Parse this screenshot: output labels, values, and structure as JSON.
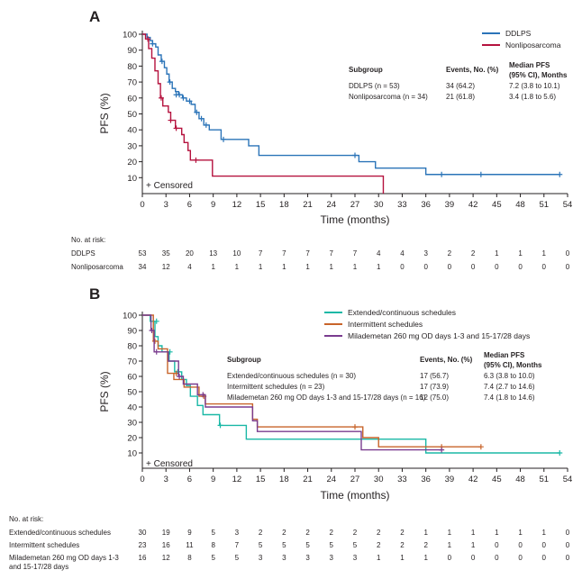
{
  "chart_data": [
    {
      "type": "line",
      "panel": "A",
      "xlabel": "Time (months)",
      "ylabel": "PFS (%)",
      "xlim": [
        0,
        54
      ],
      "ylim": [
        0,
        100
      ],
      "x_ticks": [
        0,
        3,
        6,
        9,
        12,
        15,
        18,
        21,
        24,
        27,
        30,
        33,
        36,
        39,
        42,
        45,
        48,
        51,
        54
      ],
      "y_ticks": [
        10,
        20,
        30,
        40,
        50,
        60,
        70,
        80,
        90,
        100
      ],
      "censor_note": "+ Censored",
      "legend": [
        {
          "label": "DDLPS",
          "color": "#2b74b8"
        },
        {
          "label": "Nonliposarcoma",
          "color": "#b5123e"
        }
      ],
      "series": [
        {
          "name": "DDLPS",
          "color": "#2b74b8",
          "steps": [
            [
              0,
              100
            ],
            [
              0.6,
              98
            ],
            [
              1,
              96
            ],
            [
              1.3,
              94
            ],
            [
              1.7,
              92
            ],
            [
              2,
              87
            ],
            [
              2.4,
              83
            ],
            [
              2.8,
              79
            ],
            [
              3.1,
              75
            ],
            [
              3.4,
              70
            ],
            [
              3.8,
              66
            ],
            [
              4.2,
              64
            ],
            [
              4.6,
              62
            ],
            [
              5.1,
              60
            ],
            [
              5.6,
              58
            ],
            [
              6.2,
              56
            ],
            [
              6.7,
              51
            ],
            [
              7.2,
              47
            ],
            [
              7.8,
              43
            ],
            [
              8.5,
              40
            ],
            [
              10,
              34
            ],
            [
              13.5,
              30
            ],
            [
              14.8,
              24
            ],
            [
              27.5,
              20
            ],
            [
              29.6,
              16
            ],
            [
              36,
              12
            ],
            [
              53,
              12
            ]
          ],
          "censors": [
            [
              1.3,
              94
            ],
            [
              2.5,
              83
            ],
            [
              3.5,
              70
            ],
            [
              4.3,
              62
            ],
            [
              4.7,
              62
            ],
            [
              5.2,
              60
            ],
            [
              6,
              58
            ],
            [
              6.9,
              51
            ],
            [
              7.5,
              47
            ],
            [
              8.1,
              43
            ],
            [
              10.3,
              34
            ],
            [
              27,
              24
            ],
            [
              38,
              12
            ],
            [
              43,
              12
            ],
            [
              53,
              12
            ]
          ]
        },
        {
          "name": "Nonliposarcoma",
          "color": "#b5123e",
          "steps": [
            [
              0,
              100
            ],
            [
              0.4,
              97
            ],
            [
              0.8,
              91
            ],
            [
              1.2,
              85
            ],
            [
              1.6,
              77
            ],
            [
              2,
              69
            ],
            [
              2.3,
              60
            ],
            [
              2.6,
              55
            ],
            [
              3.3,
              51
            ],
            [
              3.6,
              46
            ],
            [
              4.2,
              41
            ],
            [
              5,
              37
            ],
            [
              5.3,
              32
            ],
            [
              5.8,
              27
            ],
            [
              6.1,
              21
            ],
            [
              8.9,
              11
            ],
            [
              30.6,
              0
            ]
          ],
          "censors": [
            [
              0.7,
              97
            ],
            [
              2.4,
              60
            ],
            [
              3.6,
              46
            ],
            [
              4.3,
              41
            ],
            [
              6.8,
              21
            ]
          ]
        }
      ],
      "table": {
        "headers": {
          "subgroup": "Subgroup",
          "events": "Events, No. (%)",
          "median_l1": "Median PFS",
          "median_l2": "(95% CI), Months"
        },
        "rows": [
          {
            "subgroup": "DDLPS (n = 53)",
            "events": "34 (64.2)",
            "median": "7.2 (3.8 to 10.1)"
          },
          {
            "subgroup": "Nonliposarcoma (n = 34)",
            "events": "21 (61.8)",
            "median": "3.4 (1.8 to 5.6)"
          }
        ]
      },
      "at_risk": {
        "title": "No. at risk:",
        "rows": [
          {
            "label": "DDLPS",
            "values": [
              53,
              35,
              20,
              13,
              10,
              7,
              7,
              7,
              7,
              7,
              4,
              4,
              3,
              2,
              2,
              1,
              1,
              1,
              0
            ]
          },
          {
            "label": "Nonliposarcoma",
            "values": [
              34,
              12,
              4,
              1,
              1,
              1,
              1,
              1,
              1,
              1,
              1,
              0,
              0,
              0,
              0,
              0,
              0,
              0,
              0
            ]
          }
        ]
      }
    },
    {
      "type": "line",
      "panel": "B",
      "xlabel": "Time (months)",
      "ylabel": "PFS (%)",
      "xlim": [
        0,
        54
      ],
      "ylim": [
        0,
        100
      ],
      "x_ticks": [
        0,
        3,
        6,
        9,
        12,
        15,
        18,
        21,
        24,
        27,
        30,
        33,
        36,
        39,
        42,
        45,
        48,
        51,
        54
      ],
      "y_ticks": [
        10,
        20,
        30,
        40,
        50,
        60,
        70,
        80,
        90,
        100
      ],
      "censor_note": "+ Censored",
      "legend": [
        {
          "label": "Extended/continuous schedules",
          "color": "#1ab8a6"
        },
        {
          "label": "Intermittent schedules",
          "color": "#c8642a"
        },
        {
          "label": "Milademetan 260 mg OD days 1-3 and 15-17/28 days",
          "color": "#7a3c8f"
        }
      ],
      "series": [
        {
          "name": "Extended/continuous schedules",
          "color": "#1ab8a6",
          "steps": [
            [
              0,
              100
            ],
            [
              1,
              96
            ],
            [
              1.6,
              86
            ],
            [
              2,
              80
            ],
            [
              2.5,
              76
            ],
            [
              3.4,
              70
            ],
            [
              4.1,
              63
            ],
            [
              5,
              58
            ],
            [
              5.6,
              54
            ],
            [
              6.1,
              47
            ],
            [
              7,
              41
            ],
            [
              7.7,
              35
            ],
            [
              9.8,
              28
            ],
            [
              13.2,
              19
            ],
            [
              36,
              10
            ],
            [
              53,
              10
            ]
          ],
          "censors": [
            [
              1.8,
              96
            ],
            [
              3.5,
              76
            ],
            [
              4.5,
              63
            ],
            [
              9.9,
              28
            ],
            [
              53,
              10
            ]
          ]
        },
        {
          "name": "Intermittent schedules",
          "color": "#c8642a",
          "steps": [
            [
              0,
              100
            ],
            [
              1.4,
              83
            ],
            [
              2,
              78
            ],
            [
              3.2,
              62
            ],
            [
              4,
              58
            ],
            [
              5.3,
              53
            ],
            [
              7.2,
              47
            ],
            [
              8,
              42
            ],
            [
              14,
              32
            ],
            [
              14.6,
              27
            ],
            [
              28,
              20
            ],
            [
              30,
              14
            ],
            [
              43,
              14
            ]
          ],
          "censors": [
            [
              1.6,
              83
            ],
            [
              4.3,
              62
            ],
            [
              7.8,
              47
            ],
            [
              27,
              27
            ],
            [
              38,
              14
            ],
            [
              43,
              14
            ]
          ]
        },
        {
          "name": "Milademetan 260 mg OD days 1-3 and 15-17/28 days",
          "color": "#7a3c8f",
          "steps": [
            [
              0,
              100
            ],
            [
              1.1,
              90
            ],
            [
              1.5,
              76
            ],
            [
              3.3,
              70
            ],
            [
              4.6,
              60
            ],
            [
              5.2,
              55
            ],
            [
              7,
              48
            ],
            [
              8,
              40
            ],
            [
              14,
              31
            ],
            [
              14.6,
              24
            ],
            [
              27.8,
              12
            ],
            [
              38,
              12
            ]
          ],
          "censors": [
            [
              1.2,
              90
            ],
            [
              1.8,
              76
            ],
            [
              4.7,
              60
            ],
            [
              7.7,
              48
            ],
            [
              38,
              12
            ]
          ]
        }
      ],
      "table": {
        "headers": {
          "subgroup": "Subgroup",
          "events": "Events, No. (%)",
          "median_l1": "Median PFS",
          "median_l2": "(95% CI), Months"
        },
        "rows": [
          {
            "subgroup": "Extended/continuous schedules (n = 30)",
            "events": "17 (56.7)",
            "median": "6.3 (3.8 to 10.0)"
          },
          {
            "subgroup": "Intermittent schedules (n = 23)",
            "events": "17 (73.9)",
            "median": "7.4 (2.7 to 14.6)"
          },
          {
            "subgroup": "Milademetan 260 mg OD days 1-3 and 15-17/28 days (n = 16)",
            "events": "12 (75.0)",
            "median": "7.4 (1.8 to 14.6)"
          }
        ]
      },
      "at_risk": {
        "title": "No. at risk:",
        "rows": [
          {
            "label": "Extended/continuous schedules",
            "values": [
              30,
              19,
              9,
              5,
              3,
              2,
              2,
              2,
              2,
              2,
              2,
              2,
              1,
              1,
              1,
              1,
              1,
              1,
              0
            ]
          },
          {
            "label": "Intermittent schedules",
            "values": [
              23,
              16,
              11,
              8,
              7,
              5,
              5,
              5,
              5,
              5,
              2,
              2,
              2,
              1,
              1,
              0,
              0,
              0,
              0
            ]
          },
          {
            "label": "Milademetan 260 mg OD days 1-3",
            "label_line2": "and 15-17/28 days",
            "values": [
              16,
              12,
              8,
              5,
              5,
              3,
              3,
              3,
              3,
              3,
              1,
              1,
              1,
              0,
              0,
              0,
              0,
              0,
              0
            ]
          }
        ]
      }
    }
  ]
}
